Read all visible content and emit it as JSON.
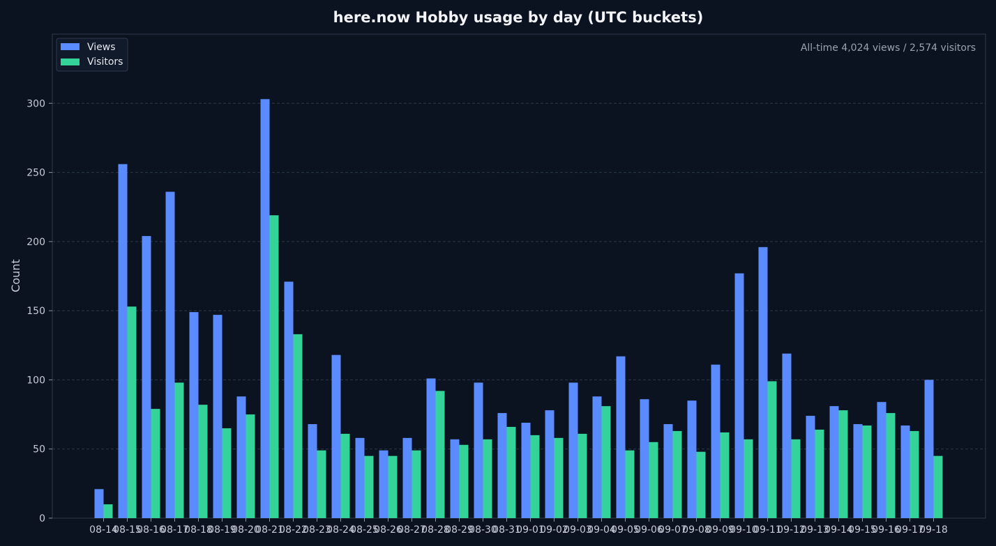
{
  "chart_data": {
    "type": "bar",
    "title": "here.now Hobby usage by day (UTC buckets)",
    "ylabel": "Count",
    "xlabel": "",
    "ylim": [
      0,
      350
    ],
    "yticks": [
      0,
      50,
      100,
      150,
      200,
      250,
      300
    ],
    "grid": true,
    "legend_position": "top-left",
    "annotation": "All-time 4,024 views / 2,574 visitors",
    "categories": [
      "08-14",
      "08-15",
      "08-16",
      "08-17",
      "08-18",
      "08-19",
      "08-20",
      "08-21",
      "08-22",
      "08-23",
      "08-24",
      "08-25",
      "08-26",
      "08-27",
      "08-28",
      "08-29",
      "08-30",
      "08-31",
      "09-01",
      "09-02",
      "09-03",
      "09-04",
      "09-05",
      "09-06",
      "09-07",
      "09-08",
      "09-09",
      "09-10",
      "09-11",
      "09-12",
      "09-13",
      "09-14",
      "09-15",
      "09-16",
      "09-17",
      "09-18"
    ],
    "series": [
      {
        "name": "Views",
        "color": "#5b8cff",
        "values": [
          21,
          256,
          204,
          236,
          149,
          147,
          88,
          303,
          171,
          68,
          118,
          58,
          49,
          58,
          101,
          57,
          98,
          76,
          69,
          78,
          98,
          88,
          117,
          86,
          68,
          85,
          111,
          177,
          196,
          119,
          74,
          81,
          68,
          84,
          67,
          100
        ]
      },
      {
        "name": "Visitors",
        "color": "#34d399",
        "values": [
          10,
          153,
          79,
          98,
          82,
          65,
          75,
          219,
          133,
          49,
          61,
          45,
          45,
          49,
          92,
          53,
          57,
          66,
          60,
          58,
          61,
          81,
          49,
          55,
          63,
          48,
          62,
          57,
          99,
          57,
          64,
          78,
          67,
          76,
          63,
          45
        ]
      }
    ]
  },
  "colors": {
    "background": "#0b1220",
    "grid": "#2a3b4a",
    "axis": "#3a4658"
  }
}
